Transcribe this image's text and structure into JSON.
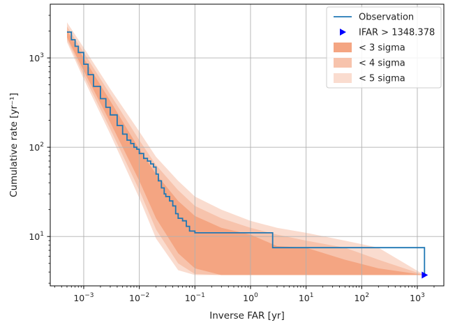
{
  "chart_data": {
    "type": "line",
    "title": "",
    "xlabel": "Inverse FAR [yr]",
    "ylabel": "Cumulative rate [yr⁻¹]",
    "xscale": "log",
    "yscale": "log",
    "xlim": [
      0.00025,
      3000
    ],
    "ylim": [
      2.8,
      4000
    ],
    "grid": true,
    "x_ticks": [
      {
        "value": 0.001,
        "base": "10",
        "exp": "−3"
      },
      {
        "value": 0.01,
        "base": "10",
        "exp": "−2"
      },
      {
        "value": 0.1,
        "base": "10",
        "exp": "−1"
      },
      {
        "value": 1,
        "base": "10",
        "exp": "0"
      },
      {
        "value": 10,
        "base": "10",
        "exp": "1"
      },
      {
        "value": 100,
        "base": "10",
        "exp": "2"
      },
      {
        "value": 1000,
        "base": "10",
        "exp": "3"
      }
    ],
    "y_ticks": [
      {
        "value": 10,
        "base": "10",
        "exp": "1"
      },
      {
        "value": 100,
        "base": "10",
        "exp": "2"
      },
      {
        "value": 1000,
        "base": "10",
        "exp": "3"
      }
    ],
    "legend": {
      "position": "top-right",
      "entries": [
        "Observation",
        "IFAR > 1348.378",
        "< 3 sigma",
        "< 4 sigma",
        "< 5 sigma"
      ]
    },
    "colors": {
      "observation": "#1f77b4",
      "ifar_marker": "#0000ff",
      "sigma3": "#f4a582",
      "sigma4": "#f7c3ac",
      "sigma5": "#fadccf",
      "grid": "#b0b0b0"
    },
    "series": [
      {
        "name": "Observation",
        "x": [
          0.0005,
          0.0006,
          0.0007,
          0.0008,
          0.001,
          0.0012,
          0.0015,
          0.002,
          0.0025,
          0.003,
          0.004,
          0.005,
          0.006,
          0.007,
          0.008,
          0.009,
          0.01,
          0.012,
          0.014,
          0.016,
          0.018,
          0.02,
          0.022,
          0.025,
          0.028,
          0.03,
          0.035,
          0.04,
          0.045,
          0.05,
          0.06,
          0.07,
          0.08,
          0.1,
          0.12,
          0.14,
          0.5,
          1,
          2.5,
          10,
          100,
          1348.378
        ],
        "y": [
          1950,
          1600,
          1350,
          1150,
          850,
          650,
          480,
          350,
          280,
          230,
          175,
          140,
          120,
          110,
          100,
          95,
          85,
          75,
          70,
          65,
          60,
          50,
          42,
          35,
          30,
          28,
          25,
          22,
          18,
          16,
          15,
          13,
          11.5,
          11,
          11,
          11,
          11,
          11,
          7.5,
          7.5,
          7.5,
          7.5
        ]
      },
      {
        "name": "IFAR > 1348.378",
        "x": [
          1348.378
        ],
        "y": [
          3.7
        ]
      },
      {
        "name": "< 3 sigma",
        "x": [
          0.0005,
          0.001,
          0.003,
          0.01,
          0.02,
          0.05,
          0.1,
          0.3,
          1,
          3,
          10,
          50,
          200,
          1348.378
        ],
        "y_low": [
          1700,
          720,
          190,
          42,
          16,
          6.5,
          4.4,
          3.7,
          3.7,
          3.7,
          3.7,
          3.7,
          3.7,
          3.7
        ],
        "y_high": [
          2050,
          1000,
          330,
          95,
          50,
          25,
          17,
          12.5,
          10.5,
          7.8,
          7.5,
          5.5,
          4.4,
          3.7
        ]
      },
      {
        "name": "< 4 sigma",
        "x": [
          0.0005,
          0.001,
          0.003,
          0.01,
          0.02,
          0.05,
          0.1,
          0.3,
          1,
          3,
          10,
          50,
          200,
          1348.378
        ],
        "y_low": [
          1600,
          640,
          160,
          33,
          12,
          5,
          3.8,
          3.7,
          3.7,
          3.7,
          3.7,
          3.7,
          3.7,
          3.7
        ],
        "y_high": [
          2250,
          1150,
          390,
          120,
          63,
          33,
          22,
          16,
          12.5,
          10.5,
          9,
          7.5,
          5.5,
          3.7
        ]
      },
      {
        "name": "< 5 sigma",
        "x": [
          0.0005,
          0.001,
          0.003,
          0.01,
          0.02,
          0.05,
          0.1,
          0.3,
          1,
          3,
          10,
          50,
          200,
          1348.378
        ],
        "y_low": [
          1500,
          580,
          140,
          27,
          9.5,
          4.2,
          3.7,
          3.7,
          3.7,
          3.7,
          3.7,
          3.7,
          3.7,
          3.7
        ],
        "y_high": [
          2500,
          1300,
          450,
          150,
          78,
          42,
          28,
          20,
          15,
          12.5,
          11,
          9,
          7.5,
          3.7
        ]
      }
    ]
  }
}
